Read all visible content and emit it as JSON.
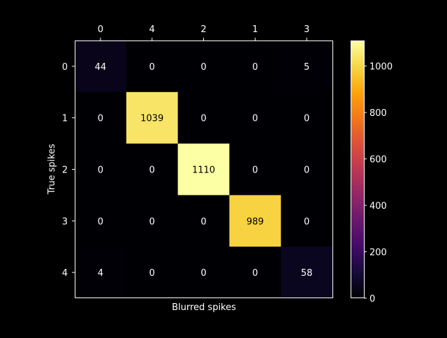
{
  "chart_data": {
    "type": "heatmap",
    "title": "",
    "xlabel": "Blurred spikes",
    "ylabel": "True spikes",
    "x_tick_labels": [
      "0",
      "4",
      "2",
      "1",
      "3"
    ],
    "y_tick_labels": [
      "0",
      "1",
      "2",
      "3",
      "4"
    ],
    "x_axis_position": "top",
    "values": [
      [
        44,
        0,
        0,
        0,
        5
      ],
      [
        0,
        1039,
        0,
        0,
        0
      ],
      [
        0,
        0,
        1110,
        0,
        0
      ],
      [
        0,
        0,
        0,
        989,
        0
      ],
      [
        4,
        0,
        0,
        0,
        58
      ]
    ],
    "colormap": "inferno",
    "colorbar": {
      "range": [
        0,
        1110
      ],
      "ticks": [
        0,
        200,
        400,
        600,
        800,
        1000
      ],
      "placement": "right"
    },
    "grid": false,
    "colors": {
      "background": "#000000",
      "foreground": "#ffffff"
    }
  }
}
